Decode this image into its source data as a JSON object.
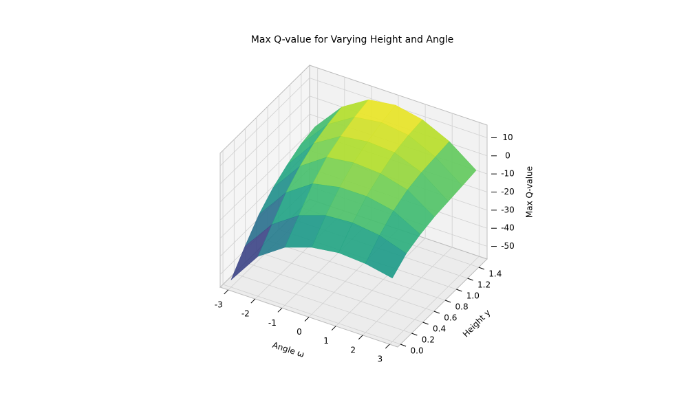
{
  "chart_data": {
    "type": "surface",
    "title": "Max Q-value for Varying Height and Angle",
    "x_label": "Angle ω",
    "y_label": "Height y",
    "z_label": "Max Q-value",
    "x": [
      -3,
      -2,
      -1,
      0,
      1,
      2,
      3
    ],
    "y": [
      0,
      0.25,
      0.5,
      0.75,
      1,
      1.25,
      1.5
    ],
    "z": [
      [
        -53,
        -35,
        -25,
        -20,
        -18,
        -19,
        -22
      ],
      [
        -42,
        -25,
        -15,
        -10,
        -9,
        -11,
        -16
      ],
      [
        -32,
        -15,
        -5,
        -2,
        -2,
        -5,
        -13
      ],
      [
        -25,
        -8,
        2,
        4,
        3,
        -1,
        -11
      ],
      [
        -20,
        -3,
        6,
        8,
        7,
        1,
        -10
      ],
      [
        -16,
        0,
        9,
        11,
        9,
        2,
        -9
      ],
      [
        -14,
        2,
        11,
        13,
        10,
        3,
        -8
      ]
    ],
    "colormap": "viridis",
    "xlim": [
      -3.3,
      3.3
    ],
    "ylim": [
      -0.05,
      1.55
    ],
    "zlim": [
      -57,
      17
    ],
    "xticks": [
      -3,
      -2,
      -1,
      0,
      1,
      2,
      3
    ],
    "yticks": [
      {
        "value": 0,
        "label": "0.0"
      },
      {
        "value": 0.2,
        "label": "0.2"
      },
      {
        "value": 0.4,
        "label": "0.4"
      },
      {
        "value": 0.6,
        "label": "0.6"
      },
      {
        "value": 0.8,
        "label": "0.8"
      },
      {
        "value": 1.0,
        "label": "1.0"
      },
      {
        "value": 1.2,
        "label": "1.2"
      },
      {
        "value": 1.4,
        "label": "1.4"
      }
    ],
    "zticks": [
      -50,
      -40,
      -30,
      -20,
      -10,
      0,
      10
    ],
    "grid": true
  }
}
